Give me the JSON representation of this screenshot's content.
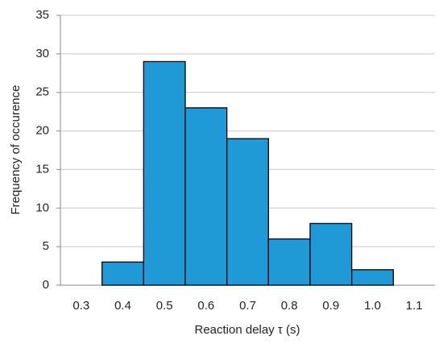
{
  "chart_data": {
    "type": "histogram",
    "x_label": "Reaction delay τ (s)",
    "y_label": "Frequency of occurence",
    "bins": [
      0.35,
      0.45,
      0.55,
      0.65,
      0.75,
      0.85,
      0.95,
      1.05
    ],
    "values": [
      3,
      29,
      23,
      19,
      6,
      8,
      2
    ],
    "color": "#1f9ad6",
    "xlim": [
      0.25,
      1.15
    ],
    "xticks": [
      0.3,
      0.4,
      0.5,
      0.6,
      0.7,
      0.8,
      0.9,
      {
        "value": 1,
        "label": "1.0"
      },
      1.1
    ],
    "ylim": [
      0,
      35
    ],
    "yticks": [
      0,
      5,
      10,
      15,
      20,
      25,
      30,
      35
    ],
    "grid": true
  }
}
